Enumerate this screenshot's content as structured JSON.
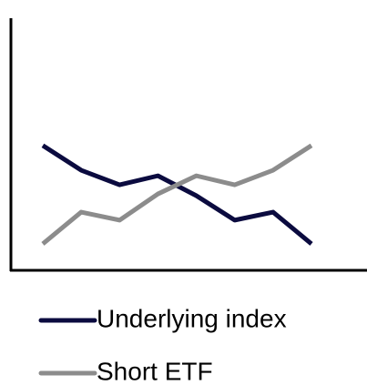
{
  "chart_data": {
    "type": "line",
    "categories": [
      null,
      null,
      null,
      null,
      null,
      null,
      null,
      null
    ],
    "series": [
      {
        "name": "Underlying index",
        "color": "#0b0b3f",
        "values": [
          49.5,
          39.7,
          33.9,
          37.5,
          29.6,
          19.9,
          23.1,
          10.5
        ]
      },
      {
        "name": "Short ETF",
        "color": "#8c8c8c",
        "values": [
          10.5,
          23.1,
          19.9,
          30.3,
          37.5,
          33.9,
          39.7,
          49.5
        ]
      }
    ],
    "ylim": [
      0,
      100
    ]
  }
}
